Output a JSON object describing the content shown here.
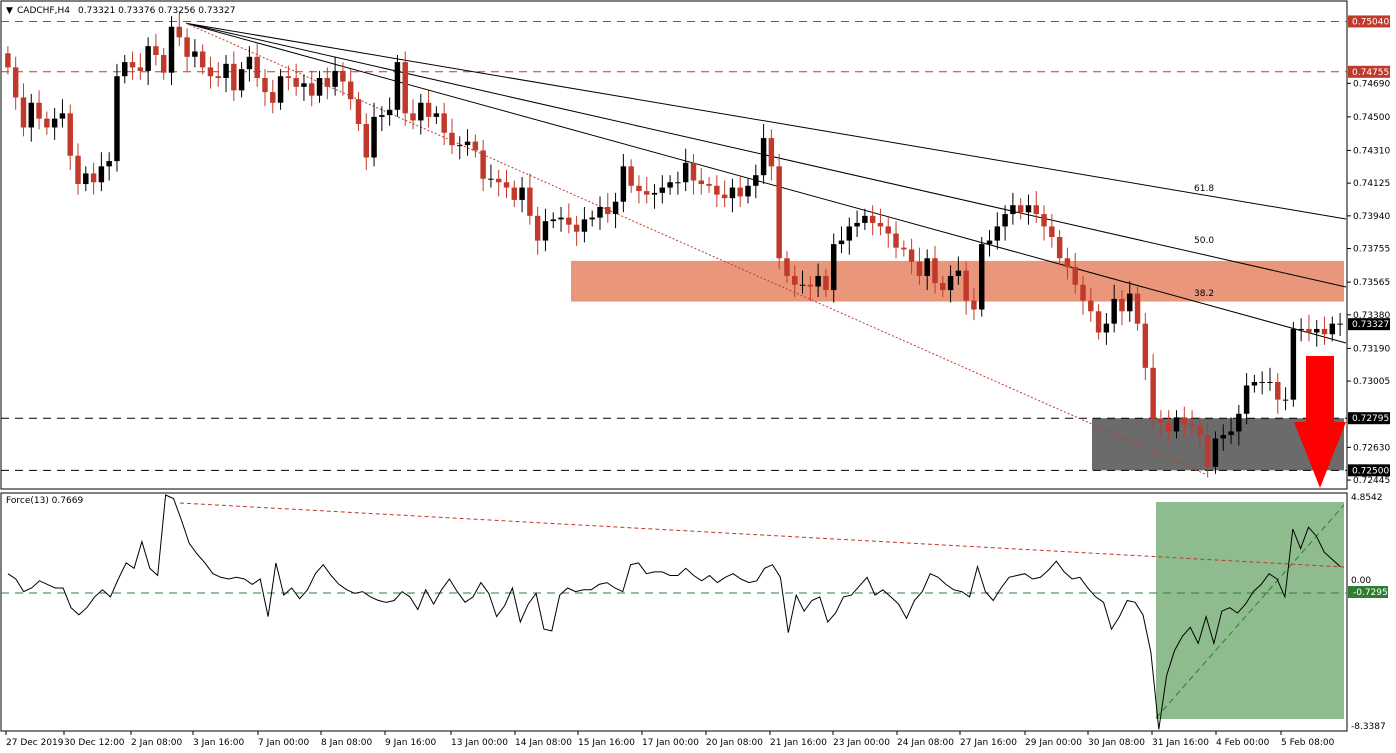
{
  "header": {
    "symbol_label": "CADCHF,H4",
    "ohlc_text": "0.73321 0.73376 0.73256 0.73327"
  },
  "force_panel": {
    "label": "Force(13) 0.7669",
    "top_value": "4.8542",
    "zero_value": "0.00",
    "bottom_value": "-8.3387",
    "level_badge": "-0.7295"
  },
  "colors": {
    "bull_candle": "#000000",
    "bear_candle": "#c0392b",
    "resistance_zone": "#e9967a",
    "support_zone": "#6b6b6b",
    "force_zone": "#8fbc8f",
    "red_arrow": "#ff0000",
    "price_badge": "#000000",
    "level_badge_red": "#c0392b",
    "level_badge_green": "#2e7d32"
  },
  "chart_data": {
    "type": "candlestick",
    "title": "CADCHF,H4",
    "yaxis_ticks": [
      "0.74690",
      "0.74500",
      "0.74310",
      "0.74125",
      "0.73940",
      "0.73755",
      "0.73565",
      "0.73380",
      "0.73190",
      "0.73005",
      "0.72630",
      "0.72445"
    ],
    "y_range": [
      0.724,
      0.7515
    ],
    "xaxis_ticks": [
      "27 Dec 2019",
      "30 Dec 12:00",
      "2 Jan 08:00",
      "3 Jan 16:00",
      "7 Jan 00:00",
      "8 Jan 08:00",
      "9 Jan 16:00",
      "13 Jan 00:00",
      "14 Jan 08:00",
      "15 Jan 16:00",
      "17 Jan 00:00",
      "20 Jan 08:00",
      "21 Jan 16:00",
      "23 Jan 00:00",
      "24 Jan 08:00",
      "27 Jan 16:00",
      "29 Jan 00:00",
      "30 Jan 08:00",
      "31 Jan 16:00",
      "4 Feb 00:00",
      "5 Feb 08:00"
    ],
    "horizontal_levels": [
      {
        "value": 0.7504,
        "label": "0.75040",
        "style": "red-dashed"
      },
      {
        "value": 0.74755,
        "label": "0.74755",
        "style": "red-dashed"
      },
      {
        "value": 0.72795,
        "label": "0.72795",
        "style": "black-dashed"
      },
      {
        "value": 0.725,
        "label": "0.72500",
        "style": "black-dashed"
      }
    ],
    "last_price": {
      "value": 0.73327,
      "label": "0.73327"
    },
    "fib_fan_labels": [
      "61.8",
      "50.0",
      "38.2"
    ],
    "resistance_zone": {
      "from": 0.73455,
      "to": 0.73685
    },
    "support_zone": {
      "from": 0.725,
      "to": 0.72795
    },
    "closes": [
      0.7478,
      0.7461,
      0.7444,
      0.7458,
      0.7449,
      0.7444,
      0.7449,
      0.7452,
      0.7428,
      0.7412,
      0.7418,
      0.7413,
      0.7422,
      0.7425,
      0.7473,
      0.7481,
      0.7478,
      0.7476,
      0.749,
      0.7485,
      0.7475,
      0.7501,
      0.7495,
      0.7484,
      0.7487,
      0.7478,
      0.7473,
      0.7472,
      0.748,
      0.7465,
      0.7477,
      0.7484,
      0.7472,
      0.7464,
      0.7458,
      0.7473,
      0.7472,
      0.7467,
      0.7469,
      0.7462,
      0.7472,
      0.7467,
      0.7476,
      0.747,
      0.746,
      0.7446,
      0.7427,
      0.745,
      0.7451,
      0.7454,
      0.7481,
      0.7452,
      0.7448,
      0.7458,
      0.745,
      0.7452,
      0.7441,
      0.7434,
      0.7434,
      0.7436,
      0.7431,
      0.7415,
      0.7415,
      0.7413,
      0.741,
      0.7403,
      0.741,
      0.7394,
      0.738,
      0.7391,
      0.7392,
      0.7393,
      0.7389,
      0.7385,
      0.7392,
      0.7393,
      0.7399,
      0.7395,
      0.7402,
      0.7422,
      0.7411,
      0.7408,
      0.7406,
      0.7407,
      0.741,
      0.7413,
      0.7413,
      0.7424,
      0.7414,
      0.7412,
      0.7411,
      0.7406,
      0.7404,
      0.741,
      0.7405,
      0.7411,
      0.7417,
      0.7438,
      0.7422,
      0.737,
      0.736,
      0.7355,
      0.7355,
      0.7354,
      0.736,
      0.7352,
      0.7378,
      0.738,
      0.7388,
      0.739,
      0.7394,
      0.739,
      0.7388,
      0.7384,
      0.7376,
      0.7375,
      0.7368,
      0.736,
      0.737,
      0.7356,
      0.7352,
      0.736,
      0.7363,
      0.7346,
      0.7341,
      0.7378,
      0.738,
      0.7388,
      0.7395,
      0.74,
      0.7396,
      0.74,
      0.7395,
      0.7388,
      0.7382,
      0.737,
      0.7365,
      0.7355,
      0.7346,
      0.734,
      0.7328,
      0.7333,
      0.7347,
      0.734,
      0.735,
      0.7333,
      0.7308,
      0.7279,
      0.7277,
      0.7272,
      0.728,
      0.7276,
      0.7275,
      0.727,
      0.7252,
      0.7268,
      0.727,
      0.7272,
      0.7282,
      0.7298,
      0.73,
      0.73,
      0.73,
      0.729,
      0.729,
      0.733,
      0.733,
      0.7328,
      0.733,
      0.7327,
      0.7333,
      0.7333
    ],
    "force_values": [
      0.4,
      0.1,
      -0.6,
      -0.4,
      0.0,
      -0.2,
      -0.4,
      -0.4,
      -1.5,
      -1.9,
      -1.5,
      -0.9,
      -0.5,
      -0.9,
      0.1,
      1.0,
      0.7,
      2.2,
      0.7,
      0.3,
      4.8,
      4.6,
      3.4,
      2.1,
      1.5,
      1.0,
      0.4,
      0.2,
      0.1,
      0.2,
      0.1,
      -0.2,
      0.1,
      -2.0,
      1.0,
      -0.8,
      -0.4,
      -1.0,
      -0.5,
      0.4,
      0.9,
      0.3,
      -0.2,
      -0.5,
      -0.7,
      -0.6,
      -0.9,
      -1.1,
      -1.2,
      -1.1,
      -0.6,
      -0.9,
      -1.6,
      -0.5,
      -1.3,
      -0.5,
      0.1,
      -0.6,
      -1.2,
      -0.9,
      -0.1,
      -0.7,
      -2.0,
      -1.4,
      -0.4,
      -2.3,
      -1.3,
      -0.7,
      -2.7,
      -2.8,
      -0.8,
      -0.4,
      -0.6,
      -0.5,
      -0.5,
      -0.2,
      -0.1,
      -0.4,
      -0.6,
      0.9,
      1.0,
      0.4,
      0.5,
      0.5,
      0.3,
      0.3,
      0.7,
      0.3,
      0.0,
      0.3,
      -0.1,
      0.2,
      0.4,
      0.1,
      -0.1,
      0.0,
      0.7,
      0.9,
      0.2,
      -2.9,
      -0.8,
      -1.7,
      -1.1,
      -0.9,
      -2.3,
      -1.8,
      -0.9,
      -0.8,
      -0.3,
      0.2,
      -0.8,
      -0.5,
      -0.9,
      -1.3,
      -2.1,
      -1.1,
      -0.6,
      0.4,
      0.2,
      -0.2,
      -0.5,
      -0.6,
      -0.9,
      0.8,
      -0.6,
      -1.1,
      -0.4,
      0.2,
      0.3,
      0.4,
      0.1,
      0.2,
      0.6,
      1.1,
      0.5,
      0.1,
      0.2,
      -0.4,
      -0.9,
      -1.2,
      -2.7,
      -2.0,
      -1.1,
      -1.2,
      -1.9,
      -4.0,
      -8.3,
      -5.3,
      -3.9,
      -3.1,
      -2.6,
      -3.5,
      -2.0,
      -3.5,
      -1.7,
      -1.5,
      -1.8,
      -1.3,
      -0.6,
      -0.2,
      0.4,
      0.1,
      -0.9,
      2.9,
      1.8,
      3.0,
      2.5,
      1.6,
      1.2,
      0.8
    ]
  }
}
